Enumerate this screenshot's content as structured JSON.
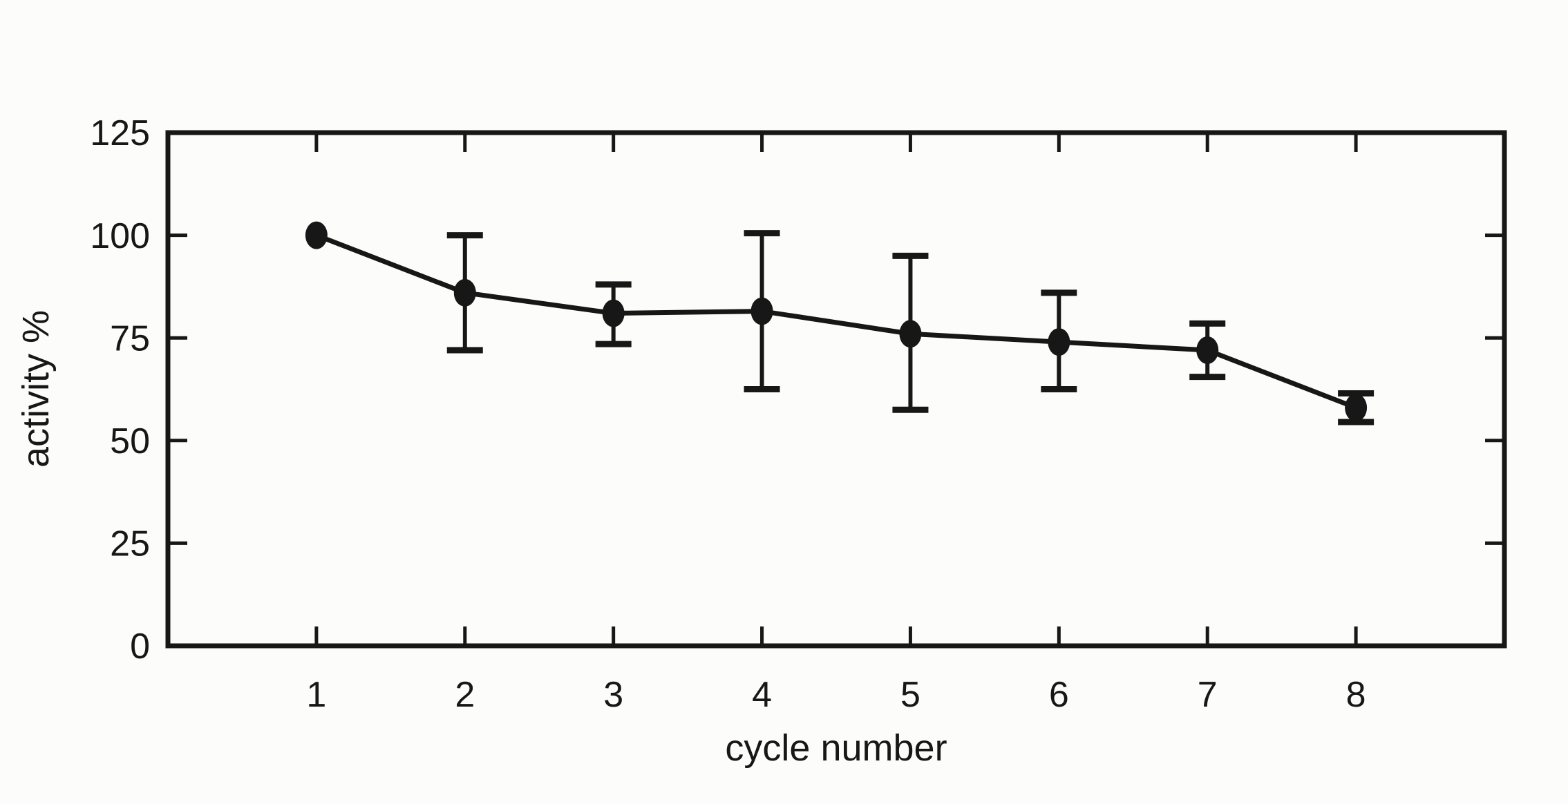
{
  "figure": {
    "background_color": "#fcfcfa",
    "ink_color": "#171717"
  },
  "axis_titles": {
    "x": "cycle number",
    "y": "activity %"
  },
  "chart_data": {
    "type": "line",
    "title": "",
    "xlabel": "cycle number",
    "ylabel": "activity %",
    "series": [
      {
        "name": "activity",
        "x": [
          1,
          2,
          3,
          4,
          5,
          6,
          7,
          8
        ],
        "y": [
          100,
          86,
          81,
          81.5,
          76,
          74,
          72,
          58
        ],
        "y_err_upper": [
          0,
          14,
          7,
          19,
          19,
          12,
          6.5,
          3.5
        ],
        "y_err_lower": [
          0,
          14,
          7.5,
          19,
          18.5,
          11.5,
          6.5,
          3.5
        ],
        "marker": "filled-circle",
        "color": "#171717"
      }
    ],
    "xlim": [
      0,
      9
    ],
    "ylim": [
      0,
      125
    ],
    "x_ticks": [
      1,
      2,
      3,
      4,
      5,
      6,
      7,
      8
    ],
    "x_tick_labels": [
      "1",
      "2",
      "3",
      "4",
      "5",
      "6",
      "7",
      "8"
    ],
    "y_ticks": [
      0,
      25,
      50,
      75,
      100,
      125
    ],
    "y_tick_labels": [
      "0",
      "25",
      "50",
      "75",
      "100",
      "125"
    ],
    "grid": false,
    "legend": null,
    "frame": "box-with-mirrored-inward-ticks"
  }
}
